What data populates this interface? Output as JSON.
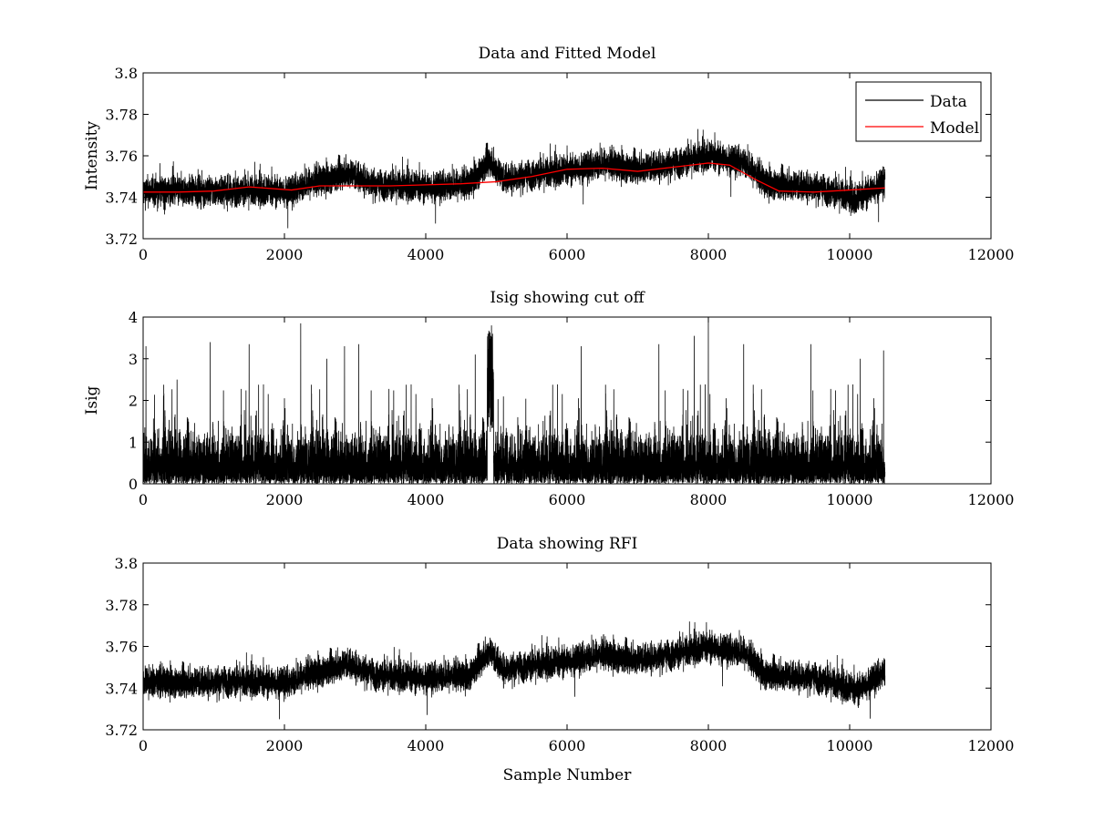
{
  "chart_data": [
    {
      "type": "line",
      "title": "Data and Fitted Model",
      "xlabel": "",
      "ylabel": "Intensity",
      "xlim": [
        0,
        12000
      ],
      "ylim": [
        3.72,
        3.8
      ],
      "xticks": [
        "0",
        "2000",
        "4000",
        "6000",
        "8000",
        "10000",
        "12000"
      ],
      "yticks": [
        "3.72",
        "3.74",
        "3.76",
        "3.78",
        "3.8"
      ],
      "legend": {
        "placement": "top-right",
        "entries": [
          "Data",
          "Model"
        ]
      },
      "series": [
        {
          "name": "Data",
          "color": "#000000",
          "points": 10500,
          "x_range": [
            0,
            10500
          ],
          "noise": 0.0065,
          "baseline": [
            [
              0,
              3.743
            ],
            [
              2100,
              3.743
            ],
            [
              2300,
              3.746
            ],
            [
              2900,
              3.752
            ],
            [
              3300,
              3.746
            ],
            [
              4000,
              3.745
            ],
            [
              4600,
              3.746
            ],
            [
              4900,
              3.758
            ],
            [
              5100,
              3.749
            ],
            [
              5800,
              3.752
            ],
            [
              6500,
              3.756
            ],
            [
              7000,
              3.754
            ],
            [
              7500,
              3.756
            ],
            [
              8000,
              3.76
            ],
            [
              8500,
              3.757
            ],
            [
              8800,
              3.747
            ],
            [
              9500,
              3.745
            ],
            [
              10100,
              3.739
            ],
            [
              10500,
              3.748
            ]
          ]
        },
        {
          "name": "Model",
          "color": "#ff0000",
          "points": [
            [
              0,
              3.7425
            ],
            [
              500,
              3.7425
            ],
            [
              1000,
              3.743
            ],
            [
              1500,
              3.745
            ],
            [
              2100,
              3.7435
            ],
            [
              2500,
              3.7455
            ],
            [
              3000,
              3.7455
            ],
            [
              3500,
              3.7455
            ],
            [
              4000,
              3.746
            ],
            [
              4500,
              3.7465
            ],
            [
              5000,
              3.7475
            ],
            [
              5500,
              3.75
            ],
            [
              6000,
              3.7535
            ],
            [
              6500,
              3.754
            ],
            [
              7000,
              3.7525
            ],
            [
              7500,
              3.7545
            ],
            [
              8000,
              3.7565
            ],
            [
              8300,
              3.7555
            ],
            [
              8700,
              3.748
            ],
            [
              9000,
              3.743
            ],
            [
              9500,
              3.7425
            ],
            [
              10000,
              3.7435
            ],
            [
              10500,
              3.7445
            ]
          ]
        }
      ]
    },
    {
      "type": "line",
      "title": "Isig showing cut off",
      "xlabel": "",
      "ylabel": "Isig",
      "xlim": [
        0,
        12000
      ],
      "ylim": [
        0,
        4
      ],
      "xticks": [
        "0",
        "2000",
        "4000",
        "6000",
        "8000",
        "10000",
        "12000"
      ],
      "yticks": [
        "0",
        "1",
        "2",
        "3",
        "4"
      ],
      "series": [
        {
          "name": "Isig",
          "color": "#000000",
          "points": 10500,
          "x_range": [
            0,
            10500
          ],
          "typical_peak": 1.5,
          "spikes": [
            [
              40,
              3.3
            ],
            [
              480,
              2.5
            ],
            [
              950,
              3.4
            ],
            [
              1500,
              3.35
            ],
            [
              2230,
              3.85
            ],
            [
              2600,
              3.0
            ],
            [
              2850,
              3.3
            ],
            [
              3050,
              3.35
            ],
            [
              4700,
              3.1
            ],
            [
              4880,
              3.6
            ],
            [
              4930,
              3.8
            ],
            [
              6200,
              3.3
            ],
            [
              7300,
              3.35
            ],
            [
              7800,
              3.55
            ],
            [
              8000,
              3.9
            ],
            [
              8500,
              3.35
            ],
            [
              9450,
              3.35
            ],
            [
              10150,
              3.0
            ],
            [
              10480,
              3.2
            ]
          ],
          "excursions": [
            [
              4870,
              4960
            ]
          ]
        }
      ]
    },
    {
      "type": "line",
      "title": "Data showing RFI",
      "xlabel": "Sample Number",
      "ylabel": "",
      "xlim": [
        0,
        12000
      ],
      "ylim": [
        3.72,
        3.8
      ],
      "xticks": [
        "0",
        "2000",
        "4000",
        "6000",
        "8000",
        "10000",
        "12000"
      ],
      "yticks": [
        "3.72",
        "3.74",
        "3.76",
        "3.78",
        "3.8"
      ],
      "series": [
        {
          "name": "Data",
          "color": "#000000",
          "points": 10500,
          "x_range": [
            0,
            10500
          ],
          "noise": 0.0065,
          "baseline": [
            [
              0,
              3.743
            ],
            [
              2100,
              3.743
            ],
            [
              2300,
              3.746
            ],
            [
              2900,
              3.752
            ],
            [
              3300,
              3.746
            ],
            [
              4000,
              3.745
            ],
            [
              4600,
              3.746
            ],
            [
              4900,
              3.758
            ],
            [
              5100,
              3.749
            ],
            [
              5800,
              3.752
            ],
            [
              6500,
              3.756
            ],
            [
              7000,
              3.754
            ],
            [
              7500,
              3.756
            ],
            [
              8000,
              3.76
            ],
            [
              8500,
              3.757
            ],
            [
              8800,
              3.747
            ],
            [
              9500,
              3.745
            ],
            [
              10100,
              3.739
            ],
            [
              10500,
              3.748
            ]
          ]
        }
      ]
    }
  ]
}
